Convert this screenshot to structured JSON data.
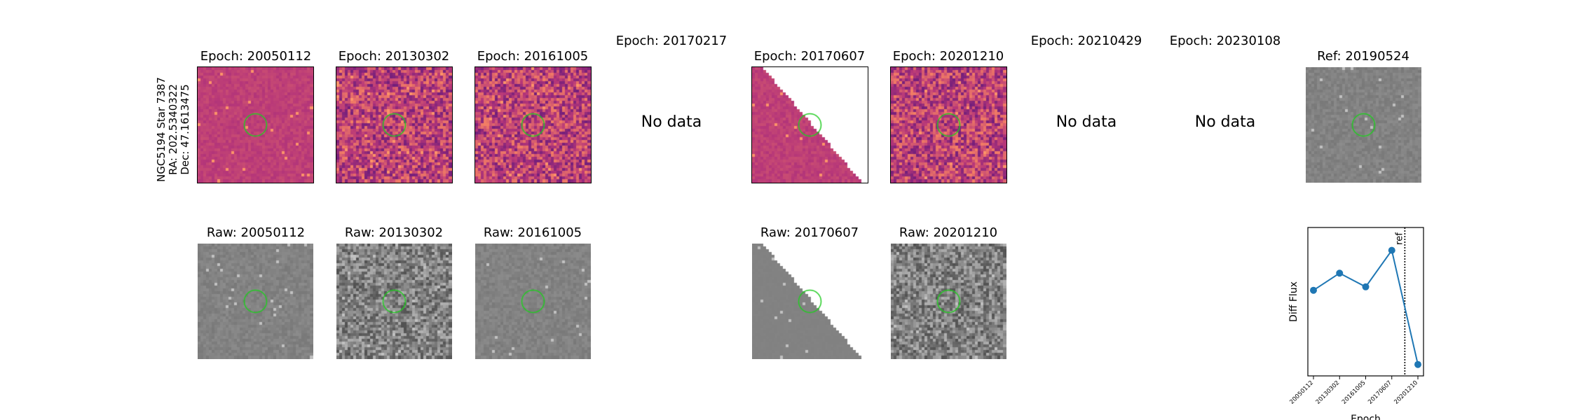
{
  "object": {
    "name": "NGC5194 Star 7387",
    "ra": "RA: 202.5340322",
    "dec": "Dec: 47.1613475"
  },
  "diff_panels": [
    {
      "title": "Epoch: 20050112",
      "has_data": true
    },
    {
      "title": "Epoch: 20130302",
      "has_data": true
    },
    {
      "title": "Epoch: 20161005",
      "has_data": true
    },
    {
      "title": "Epoch: 20170217",
      "has_data": false,
      "no_data_text": "No data"
    },
    {
      "title": "Epoch: 20170607",
      "has_data": true
    },
    {
      "title": "Epoch: 20201210",
      "has_data": true
    },
    {
      "title": "Epoch: 20210429",
      "has_data": false,
      "no_data_text": "No data"
    },
    {
      "title": "Epoch: 20230108",
      "has_data": false,
      "no_data_text": "No data"
    }
  ],
  "ref_panel": {
    "title": "Ref: 20190524"
  },
  "raw_panels": [
    {
      "title": "Raw: 20050112"
    },
    {
      "title": "Raw: 20130302"
    },
    {
      "title": "Raw: 20161005"
    },
    {
      "title": "Raw: 20170607"
    },
    {
      "title": "Raw: 20201210"
    }
  ],
  "colors": {
    "marker_circle": "#22cc22",
    "line": "#1f77b4"
  },
  "chart_data": {
    "type": "line",
    "x": [
      "20050112",
      "20130302",
      "20161005",
      "20170607",
      "20201210"
    ],
    "y": [
      0.55,
      0.7,
      0.58,
      0.9,
      -0.1
    ],
    "ylim": [
      -0.2,
      1.1
    ],
    "xlabel": "Epoch",
    "ylabel": "Diff Flux",
    "ref_line_label": "ref",
    "ref_line_position": 3.5,
    "grid": false
  }
}
